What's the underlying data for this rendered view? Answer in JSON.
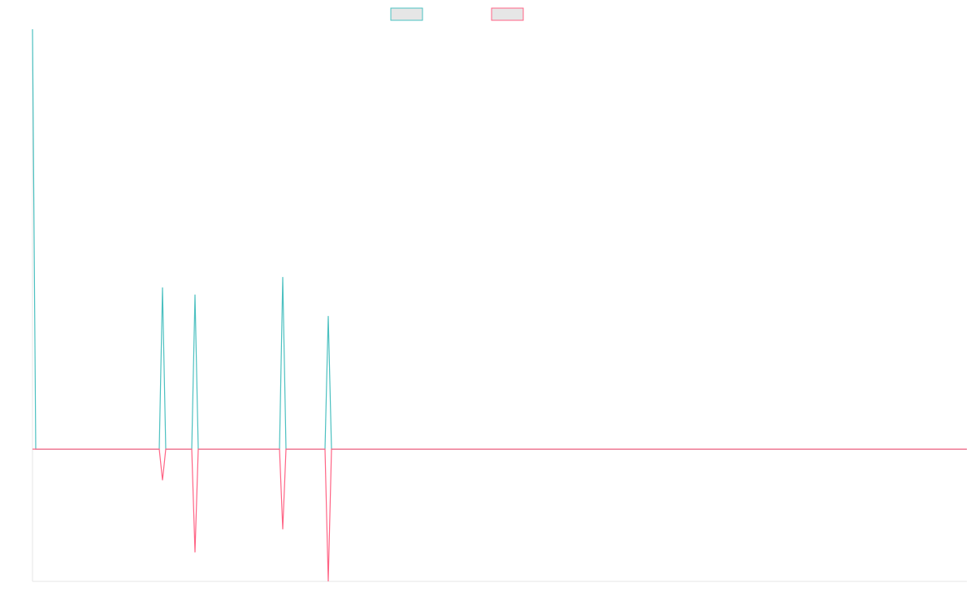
{
  "chart_data": {
    "type": "line",
    "x": [
      0,
      1,
      39,
      40,
      41,
      49,
      50,
      51,
      76,
      77,
      78,
      90,
      91,
      92,
      287.5
    ],
    "series": [
      {
        "color": "#4bc0c0",
        "values": [
          100,
          0,
          0,
          38.5,
          0,
          0,
          36.8,
          0,
          0,
          41,
          0,
          0,
          31.7,
          0,
          0
        ]
      },
      {
        "color": "#ff6384",
        "values": [
          0,
          0,
          0,
          -7.4,
          0,
          0,
          -24.6,
          0,
          0,
          -19.1,
          0,
          0,
          -31.5,
          0,
          0
        ]
      }
    ],
    "xlim": [
      0,
      287.5
    ],
    "ylim": [
      -31.5,
      100
    ]
  }
}
